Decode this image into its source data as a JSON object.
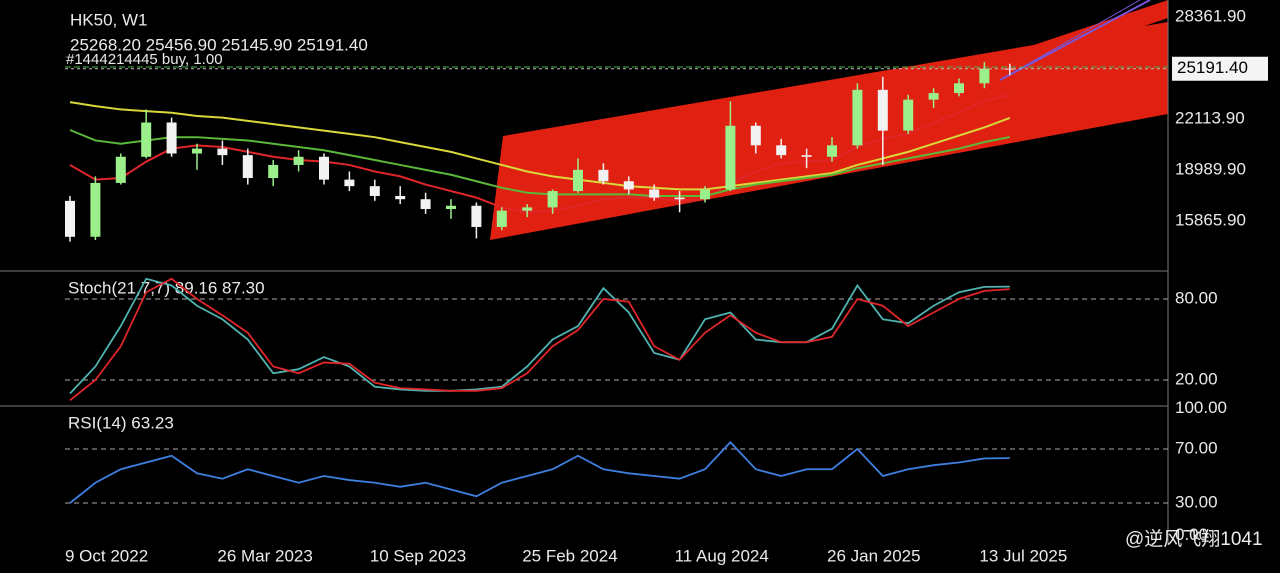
{
  "watermark": "@逆风飞翔1041",
  "chart_data": [
    {
      "type": "candlestick",
      "title": "HK50, W1",
      "subtitle": "25268.20 25456.90 25145.90 25191.40",
      "annotation": "#1444214445 buy, 1.00",
      "up_color": "#9cf08c",
      "down_color": "#f2f2f2",
      "open": [
        17100,
        14900,
        18200,
        19800,
        21900,
        20000,
        20300,
        19900,
        18500,
        19300,
        19800,
        18400,
        18000,
        17400,
        17200,
        16600,
        16800,
        15500,
        16500,
        16700,
        17700,
        19000,
        18300,
        17800,
        17300,
        17200,
        17800,
        21700,
        20500,
        19900,
        19800,
        20500,
        23900,
        21400,
        23300,
        23700,
        24300,
        25200
      ],
      "high": [
        17400,
        18600,
        20000,
        22700,
        22200,
        20600,
        20800,
        20300,
        19600,
        20200,
        20000,
        18900,
        18400,
        18000,
        17600,
        17200,
        17000,
        16700,
        16900,
        17800,
        19700,
        19400,
        18600,
        18100,
        17700,
        18000,
        23200,
        21900,
        20900,
        20300,
        21000,
        24300,
        24700,
        23600,
        24000,
        24600,
        25600,
        25500
      ],
      "low": [
        14600,
        14700,
        18100,
        19700,
        19800,
        19000,
        19300,
        18100,
        18000,
        18900,
        18100,
        17700,
        17100,
        16900,
        16300,
        16000,
        14800,
        15300,
        16100,
        16300,
        17600,
        18100,
        17500,
        17100,
        16400,
        17000,
        17700,
        20000,
        19700,
        19100,
        19500,
        20300,
        19300,
        21200,
        22800,
        23500,
        24000,
        24800
      ],
      "close": [
        14900,
        18200,
        19800,
        21900,
        20000,
        20300,
        19900,
        18500,
        19300,
        19800,
        18400,
        18000,
        17400,
        17200,
        16600,
        16800,
        15500,
        16500,
        16700,
        17700,
        19000,
        18300,
        17800,
        17300,
        17200,
        17800,
        21700,
        20500,
        19900,
        19800,
        20500,
        23900,
        21400,
        23300,
        23700,
        24300,
        25200,
        25191.4
      ],
      "series": [
        {
          "color": "#e0262a",
          "values": [
            19300,
            18400,
            18500,
            19500,
            20300,
            20500,
            20400,
            20100,
            19800,
            19600,
            19500,
            19300,
            18900,
            18600,
            18100,
            17700,
            17300,
            16700,
            16400,
            16500,
            16800,
            17200,
            17300,
            17300,
            17100,
            17200,
            18200,
            18900,
            19400,
            19500,
            19600,
            20400,
            20900,
            21200,
            21900,
            22500,
            23200,
            23600
          ]
        },
        {
          "color": "#d8d83a",
          "values": [
            23150,
            22900,
            22700,
            22600,
            22500,
            22300,
            22200,
            22000,
            21800,
            21600,
            21400,
            21200,
            21000,
            20700,
            20400,
            20100,
            19700,
            19300,
            18900,
            18600,
            18400,
            18200,
            18000,
            17900,
            17800,
            17800,
            18000,
            18200,
            18400,
            18600,
            18800,
            19300,
            19700,
            20100,
            20600,
            21100,
            21600,
            22180
          ]
        },
        {
          "color": "#5cb83a",
          "values": [
            21440,
            20800,
            20600,
            20800,
            21000,
            21000,
            20900,
            20800,
            20600,
            20400,
            20200,
            19900,
            19600,
            19300,
            19000,
            18700,
            18300,
            17900,
            17600,
            17500,
            17500,
            17500,
            17500,
            17400,
            17400,
            17400,
            17800,
            18100,
            18300,
            18500,
            18700,
            19100,
            19400,
            19700,
            20000,
            20300,
            20700,
            21010
          ]
        }
      ],
      "last_price": {
        "value": 25191.4,
        "label": "25191.40"
      },
      "ylim": [
        12865,
        29403
      ],
      "yticks": [
        {
          "value": 28361.9,
          "label": "28361.90"
        },
        {
          "value": 22113.9,
          "label": "22113.90"
        },
        {
          "value": 18989.9,
          "label": "18989.90"
        },
        {
          "value": 15865.9,
          "label": "15865.90"
        }
      ],
      "grid": false
    },
    {
      "type": "line",
      "title": "Stoch(21,7,7) 89.16 87.30",
      "series": [
        {
          "color": "#4fb3b0",
          "values": [
            10,
            30,
            60,
            95,
            90,
            75,
            65,
            50,
            25,
            28,
            37,
            30,
            15,
            13,
            12,
            12,
            13,
            15,
            30,
            50,
            60,
            88,
            70,
            40,
            35,
            65,
            70,
            50,
            48,
            48,
            58,
            90,
            65,
            62,
            75,
            85,
            89,
            89.16
          ]
        },
        {
          "color": "#e0262a",
          "values": [
            5,
            20,
            45,
            85,
            95,
            80,
            68,
            55,
            30,
            25,
            33,
            32,
            18,
            14,
            13,
            12,
            12,
            14,
            25,
            45,
            57,
            80,
            78,
            45,
            35,
            55,
            68,
            55,
            48,
            48,
            52,
            80,
            75,
            60,
            70,
            80,
            86,
            87.3
          ]
        }
      ],
      "ylim": [
        0,
        100
      ],
      "yticks": [
        {
          "value": 80,
          "label": "80.00"
        },
        {
          "value": 20,
          "label": "20.00"
        }
      ],
      "grid": true
    },
    {
      "type": "line",
      "title": "RSI(14) 63.23",
      "categories": [
        "9 Oct 2022",
        null,
        null,
        null,
        null,
        null,
        "26 Mar 2023",
        null,
        null,
        null,
        null,
        null,
        "10 Sep 2023",
        null,
        null,
        null,
        null,
        null,
        "25 Feb 2024",
        null,
        null,
        null,
        null,
        null,
        "11 Aug 2024",
        null,
        null,
        null,
        null,
        null,
        "26 Jan 2025",
        null,
        null,
        null,
        null,
        null,
        "13 Jul 2025",
        null
      ],
      "series": [
        {
          "color": "#3f7fe0",
          "values": [
            30,
            45,
            55,
            60,
            65,
            52,
            48,
            55,
            50,
            45,
            50,
            47,
            45,
            42,
            45,
            40,
            35,
            45,
            50,
            55,
            65,
            55,
            52,
            50,
            48,
            55,
            75,
            55,
            50,
            55,
            55,
            70,
            50,
            55,
            58,
            60,
            63,
            63.23
          ]
        }
      ],
      "ylim": [
        0,
        100
      ],
      "yticks": [
        {
          "value": 100,
          "label": "100.00"
        },
        {
          "value": 70,
          "label": "70.00"
        },
        {
          "value": 30,
          "label": "30.00"
        },
        {
          "value": 0,
          "label": "0.00"
        }
      ],
      "grid": true
    }
  ]
}
